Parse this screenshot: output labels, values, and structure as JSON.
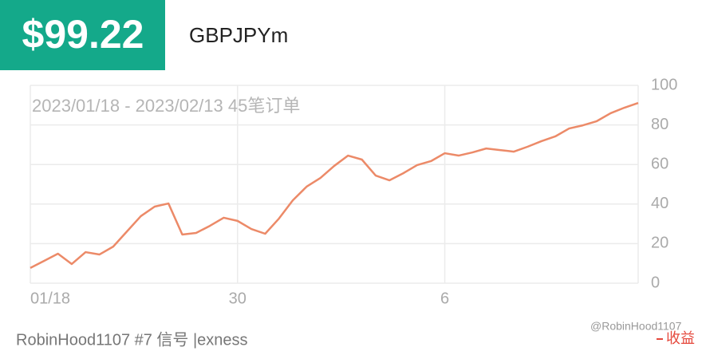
{
  "header": {
    "price": "$99.22",
    "symbol": "GBPJPYm"
  },
  "chart_data": {
    "type": "line",
    "subtitle": "2023/01/18 - 2023/02/13 45笔订单",
    "categories": [
      "01/18",
      null,
      null,
      null,
      null,
      null,
      null,
      null,
      null,
      null,
      null,
      null,
      null,
      null,
      null,
      "30",
      null,
      null,
      null,
      null,
      null,
      null,
      null,
      null,
      null,
      null,
      null,
      null,
      null,
      null,
      "6",
      null,
      null,
      null,
      null,
      null,
      null,
      null,
      null,
      null,
      null,
      null,
      null,
      null,
      null
    ],
    "series": [
      {
        "name": "收益",
        "color": "#ec8a68",
        "values": [
          7.7,
          11.3,
          14.9,
          9.7,
          15.7,
          14.5,
          18.5,
          26.2,
          33.9,
          38.7,
          40.3,
          24.6,
          25.4,
          29.0,
          33.1,
          31.5,
          27.4,
          25.0,
          32.7,
          41.9,
          48.8,
          53.2,
          59.3,
          64.5,
          62.5,
          54.4,
          52.0,
          55.6,
          59.7,
          61.7,
          65.7,
          64.5,
          66.1,
          68.1,
          67.3,
          66.5,
          69.0,
          71.8,
          74.2,
          78.2,
          79.8,
          81.9,
          85.9,
          88.7,
          91.1
        ]
      }
    ],
    "ylim": [
      0,
      100
    ],
    "yticks": [
      0,
      20,
      40,
      60,
      80,
      100
    ],
    "grid": true
  },
  "footer": {
    "signal": "RobinHood1107 #7 信号 |exness",
    "watermark": "@RobinHood1107"
  }
}
